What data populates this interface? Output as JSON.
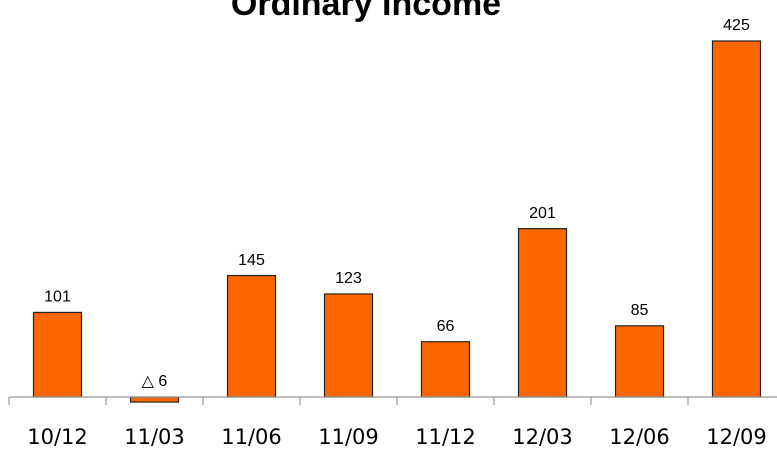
{
  "chart_data": {
    "type": "bar",
    "title": "Ordinary Income",
    "categories": [
      "10/12",
      "11/03",
      "11/06",
      "11/09",
      "11/12",
      "12/03",
      "12/06",
      "12/09"
    ],
    "values": [
      101,
      -6,
      145,
      123,
      66,
      201,
      85,
      425
    ],
    "value_labels": [
      "101",
      "△ 6",
      "145",
      "123",
      "66",
      "201",
      "85",
      "425"
    ],
    "color": "#ff6600"
  }
}
